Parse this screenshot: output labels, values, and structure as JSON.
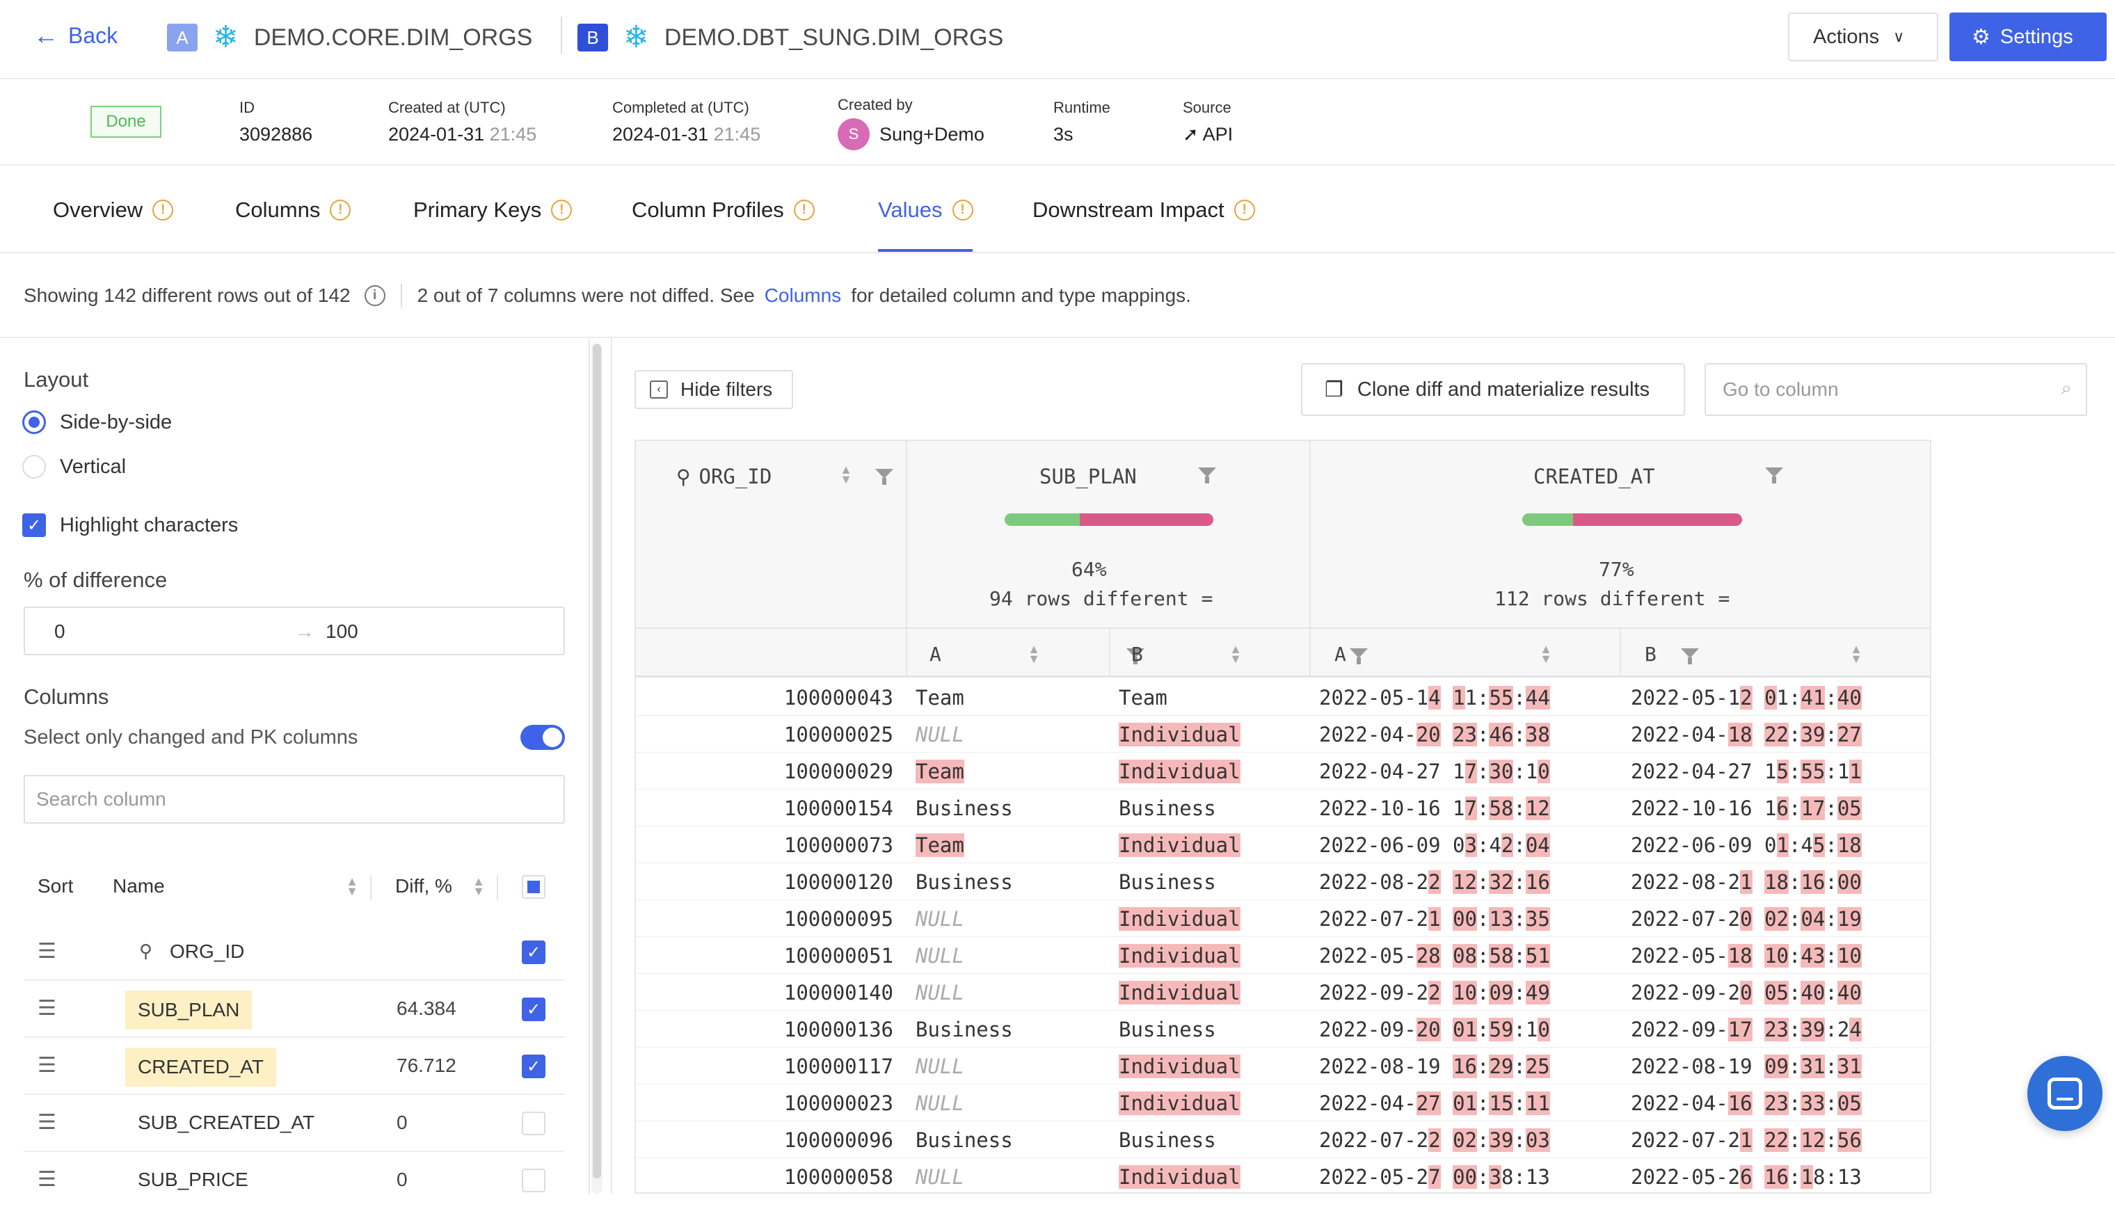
{
  "header": {
    "back_label": "Back",
    "source_a": {
      "badge": "A",
      "name": "DEMO.CORE.DIM_ORGS"
    },
    "source_b": {
      "badge": "B",
      "name": "DEMO.DBT_SUNG.DIM_ORGS"
    },
    "actions_label": "Actions",
    "settings_label": "Settings"
  },
  "meta": {
    "status": "Done",
    "id_label": "ID",
    "id_value": "3092886",
    "created_label": "Created at (UTC)",
    "created_date": "2024-01-31",
    "created_time": "21:45",
    "completed_label": "Completed at (UTC)",
    "completed_date": "2024-01-31",
    "completed_time": "21:45",
    "created_by_label": "Created by",
    "created_by_initial": "S",
    "created_by_value": "Sung+Demo",
    "runtime_label": "Runtime",
    "runtime_value": "3s",
    "source_label": "Source",
    "source_value": "API"
  },
  "tabs": [
    {
      "label": "Overview"
    },
    {
      "label": "Columns"
    },
    {
      "label": "Primary Keys"
    },
    {
      "label": "Column Profiles"
    },
    {
      "label": "Values"
    },
    {
      "label": "Downstream Impact"
    }
  ],
  "summary": {
    "rows_text": "Showing 142 different rows out of 142",
    "cols_text_pre": "2 out of 7 columns were not diffed. See",
    "cols_link": "Columns",
    "cols_text_post": "for detailed column and type mappings."
  },
  "sidebar": {
    "layout_title": "Layout",
    "layout_options": [
      "Side-by-side",
      "Vertical"
    ],
    "highlight_label": "Highlight characters",
    "pct_title": "% of difference",
    "pct_min": "0",
    "pct_arrow": "→",
    "pct_max": "100",
    "columns_title": "Columns",
    "changed_only_label": "Select only changed and PK columns",
    "search_placeholder": "Search column",
    "table_headers": {
      "sort": "Sort",
      "name": "Name",
      "diff": "Diff, %"
    },
    "columns": [
      {
        "name": "ORG_ID",
        "diff": "",
        "checked": true,
        "pk": true
      },
      {
        "name": "SUB_PLAN",
        "diff": "64.384",
        "checked": true
      },
      {
        "name": "CREATED_AT",
        "diff": "76.712",
        "checked": true
      },
      {
        "name": "SUB_CREATED_AT",
        "diff": "0",
        "checked": false
      },
      {
        "name": "SUB_PRICE",
        "diff": "0",
        "checked": false
      }
    ]
  },
  "toolbar": {
    "hide_filters": "Hide filters",
    "clone_label": "Clone diff and materialize results",
    "goto_placeholder": "Go to column"
  },
  "grid": {
    "pk_header": "ORG_ID",
    "columns": [
      {
        "name": "SUB_PLAN",
        "pct": "64%",
        "rows_diff": "94 rows different",
        "match_fraction": 0.36
      },
      {
        "name": "CREATED_AT",
        "pct": "77%",
        "rows_diff": "112 rows different",
        "match_fraction": 0.23
      }
    ],
    "sub_a": "A",
    "sub_b": "B",
    "rows": [
      {
        "id": "100000043",
        "pa": "Team",
        "pb": "Team",
        "ca": "2022-05-1[4] [1]1:[55]:[44]",
        "cb": "2022-05-1[2] [0]1:[41]:[40]"
      },
      {
        "id": "100000025",
        "pa": "NULL",
        "pb": "[Individual]",
        "ca": "2022-04-[20] [23]:[46]:[38]",
        "cb": "2022-04-[18] [22]:[39]:[27]"
      },
      {
        "id": "100000029",
        "pa": "[Team]",
        "pb": "[Individual]",
        "ca": "2022-04-27 1[7]:[30]:1[0]",
        "cb": "2022-04-27 1[5]:[55]:1[1]"
      },
      {
        "id": "100000154",
        "pa": "Business",
        "pb": "Business",
        "ca": "2022-10-16 1[7]:[58]:[12]",
        "cb": "2022-10-16 1[6]:[17]:[05]"
      },
      {
        "id": "100000073",
        "pa": "[Team]",
        "pb": "[Individual]",
        "ca": "2022-06-09 0[3]:4[2]:[04]",
        "cb": "2022-06-09 0[1]:4[5]:[18]"
      },
      {
        "id": "100000120",
        "pa": "Business",
        "pb": "Business",
        "ca": "2022-08-2[2] [12]:[32]:[16]",
        "cb": "2022-08-2[1] [18]:[16]:[00]"
      },
      {
        "id": "100000095",
        "pa": "NULL",
        "pb": "[Individual]",
        "ca": "2022-07-2[1] [00]:[13]:[35]",
        "cb": "2022-07-2[0] [02]:[04]:[19]"
      },
      {
        "id": "100000051",
        "pa": "NULL",
        "pb": "[Individual]",
        "ca": "2022-05-[28] [08]:[58]:[51]",
        "cb": "2022-05-[18] [10]:[43]:[10]"
      },
      {
        "id": "100000140",
        "pa": "NULL",
        "pb": "[Individual]",
        "ca": "2022-09-2[2] [10]:[09]:[49]",
        "cb": "2022-09-2[0] [05]:[40]:[40]"
      },
      {
        "id": "100000136",
        "pa": "Business",
        "pb": "Business",
        "ca": "2022-09-[20] [01]:[59]:1[0]",
        "cb": "2022-09-[17] [23]:[39]:2[4]"
      },
      {
        "id": "100000117",
        "pa": "NULL",
        "pb": "[Individual]",
        "ca": "2022-08-19 [16]:[29]:[25]",
        "cb": "2022-08-19 [09]:[31]:[31]"
      },
      {
        "id": "100000023",
        "pa": "NULL",
        "pb": "[Individual]",
        "ca": "2022-04-[27] [01]:[15]:[11]",
        "cb": "2022-04-[16] [23]:[33]:[05]"
      },
      {
        "id": "100000096",
        "pa": "Business",
        "pb": "Business",
        "ca": "2022-07-2[2] [02]:[39]:[03]",
        "cb": "2022-07-2[1] [22]:[12]:[56]"
      },
      {
        "id": "100000058",
        "pa": "NULL",
        "pb": "[Individual]",
        "ca": "2022-05-2[7] [00]:[3]8:13",
        "cb": "2022-05-2[6] [16]:[1]8:13"
      }
    ]
  },
  "colors": {
    "accent": "#3f63e6",
    "diff": "#f6b9b9",
    "match": "#7ec97e",
    "mismatch": "#d95a86",
    "warn": "#e8a33d",
    "done": "#52b852"
  }
}
